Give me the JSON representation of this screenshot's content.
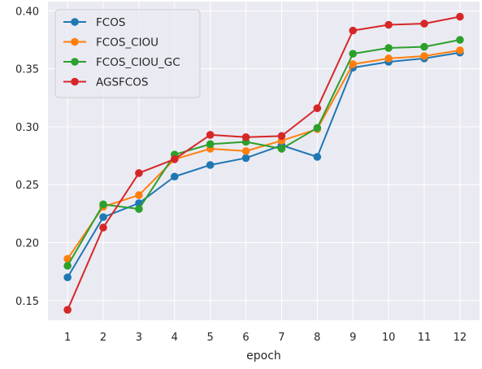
{
  "chart_data": {
    "type": "line",
    "title": "",
    "xlabel": "epoch",
    "ylabel": "",
    "x": [
      1,
      2,
      3,
      4,
      5,
      6,
      7,
      8,
      9,
      10,
      11,
      12
    ],
    "xticks": [
      "1",
      "2",
      "3",
      "4",
      "5",
      "6",
      "7",
      "8",
      "9",
      "10",
      "11",
      "12"
    ],
    "yticks": [
      "0.15",
      "0.20",
      "0.25",
      "0.30",
      "0.35",
      "0.40"
    ],
    "xlim": [
      0.45,
      12.55
    ],
    "ylim": [
      0.133,
      0.408
    ],
    "grid": true,
    "legend_position": "upper-left",
    "series": [
      {
        "name": "FCOS",
        "color": "#1f77b4",
        "values": [
          0.17,
          0.222,
          0.234,
          0.257,
          0.267,
          0.273,
          0.284,
          0.274,
          0.351,
          0.356,
          0.359,
          0.364
        ]
      },
      {
        "name": "FCOS_CIOU",
        "color": "#ff7f0e",
        "values": [
          0.186,
          0.231,
          0.241,
          0.272,
          0.281,
          0.279,
          0.288,
          0.298,
          0.354,
          0.359,
          0.361,
          0.366
        ]
      },
      {
        "name": "FCOS_CIOU_GC",
        "color": "#2ca02c",
        "values": [
          0.18,
          0.233,
          0.229,
          0.276,
          0.285,
          0.287,
          0.281,
          0.299,
          0.363,
          0.368,
          0.369,
          0.375
        ]
      },
      {
        "name": "AGSFCOS",
        "color": "#d62728",
        "values": [
          0.142,
          0.213,
          0.26,
          0.272,
          0.293,
          0.291,
          0.292,
          0.316,
          0.383,
          0.388,
          0.389,
          0.395
        ]
      }
    ]
  }
}
